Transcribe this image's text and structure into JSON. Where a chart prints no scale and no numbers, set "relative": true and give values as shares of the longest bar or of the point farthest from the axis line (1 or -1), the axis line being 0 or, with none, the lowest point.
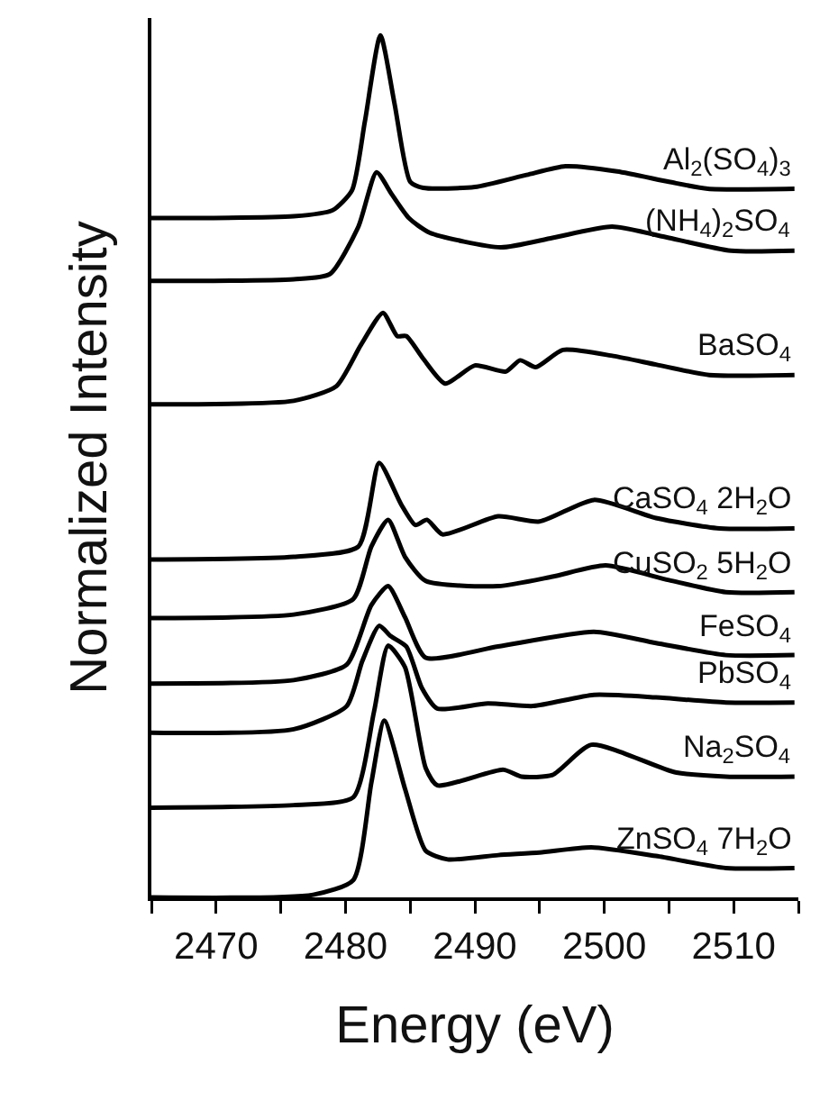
{
  "chart_data": {
    "type": "line",
    "xlabel": "Energy (eV)",
    "ylabel": "Normalized Intensity",
    "relative": true,
    "xlim": [
      2465,
      2515
    ],
    "xticks": [
      {
        "value": 2465,
        "label": null
      },
      2470,
      {
        "value": 2475,
        "label": null
      },
      2480,
      {
        "value": 2485,
        "label": null
      },
      2490,
      {
        "value": 2495,
        "label": null
      },
      2500,
      {
        "value": 2505,
        "label": null
      },
      2510,
      {
        "value": 2515,
        "label": null
      }
    ],
    "grid": false,
    "legend": false,
    "marker": "none",
    "line_style": "solid",
    "series": [
      {
        "name": "Al$_{2}$(SO$_{4}$)$_{3}$",
        "color": "#000000",
        "x": [
          2465,
          2476,
          2479,
          2480.5,
          2481.5,
          2482.7,
          2483.8,
          2485,
          2486,
          2490,
          2494,
          2497,
          2501,
          2505,
          2508,
          2514.7
        ],
        "values": [
          0.788,
          0.79,
          0.797,
          0.82,
          0.9,
          1.0,
          0.92,
          0.83,
          0.823,
          0.824,
          0.838,
          0.848,
          0.842,
          0.83,
          0.822,
          0.822
        ]
      },
      {
        "name": "(NH$_{4}$)$_{2}$SO$_{4}$",
        "color": "#000000",
        "x": [
          2465,
          2476,
          2478.8,
          2481,
          2482.4,
          2483.6,
          2484.9,
          2486.5,
          2492,
          2496,
          2500.6,
          2505,
          2509.8,
          2514.7
        ],
        "values": [
          0.715,
          0.717,
          0.723,
          0.778,
          0.841,
          0.815,
          0.788,
          0.771,
          0.754,
          0.765,
          0.778,
          0.765,
          0.75,
          0.75
        ]
      },
      {
        "name": "BaSO$_{4}$",
        "color": "#000000",
        "x": [
          2465,
          2476,
          2479.3,
          2481.2,
          2482.9,
          2484,
          2484.7,
          2486,
          2487.7,
          2490,
          2492.4,
          2493.5,
          2494.7,
          2496.8,
          2500.7,
          2504,
          2508.1,
          2514.7
        ],
        "values": [
          0.572,
          0.576,
          0.593,
          0.641,
          0.678,
          0.651,
          0.651,
          0.625,
          0.596,
          0.617,
          0.61,
          0.623,
          0.615,
          0.635,
          0.628,
          0.618,
          0.606,
          0.606
        ]
      },
      {
        "name": "CaSO$_{4}$ 2H$_{2}$O",
        "color": "#000000",
        "x": [
          2465,
          2476,
          2481,
          2482.6,
          2484.3,
          2485.4,
          2486.3,
          2487.5,
          2491.8,
          2495,
          2499.2,
          2504,
          2508.9,
          2514.7
        ],
        "values": [
          0.392,
          0.395,
          0.407,
          0.504,
          0.456,
          0.432,
          0.438,
          0.421,
          0.442,
          0.436,
          0.461,
          0.44,
          0.428,
          0.428
        ]
      },
      {
        "name": "CuSO$_{2}$ 5H$_{2}$O",
        "color": "#000000",
        "x": [
          2465,
          2476,
          2480.6,
          2482,
          2483.3,
          2484.6,
          2486.2,
          2491.8,
          2496,
          2500.1,
          2505,
          2509.4,
          2514.7
        ],
        "values": [
          0.324,
          0.328,
          0.346,
          0.407,
          0.438,
          0.395,
          0.367,
          0.361,
          0.372,
          0.385,
          0.368,
          0.354,
          0.354
        ]
      },
      {
        "name": "FeSO$_{4}$",
        "color": "#000000",
        "x": [
          2465,
          2476,
          2480.1,
          2482,
          2483.3,
          2484.6,
          2486.2,
          2491.8,
          2499.2,
          2504,
          2509.4,
          2514.7
        ],
        "values": [
          0.248,
          0.252,
          0.27,
          0.339,
          0.361,
          0.325,
          0.278,
          0.291,
          0.308,
          0.295,
          0.281,
          0.281
        ]
      },
      {
        "name": "PbSO$_{4}$",
        "color": "#000000",
        "x": [
          2465,
          2476,
          2480.1,
          2481.3,
          2482.6,
          2483.5,
          2484.7,
          2485.9,
          2487.1,
          2491,
          2494.5,
          2499.2,
          2504,
          2509.4,
          2514.7
        ],
        "values": [
          0.191,
          0.195,
          0.222,
          0.274,
          0.315,
          0.303,
          0.291,
          0.243,
          0.219,
          0.225,
          0.222,
          0.235,
          0.232,
          0.226,
          0.226
        ]
      },
      {
        "name": "Na$_{2}$SO$_{4}$",
        "color": "#000000",
        "x": [
          2465,
          2476,
          2480.6,
          2482.2,
          2483.3,
          2484.6,
          2486.2,
          2487.1,
          2492.2,
          2493.6,
          2496,
          2499,
          2505.5,
          2509.4,
          2514.7
        ],
        "values": [
          0.104,
          0.107,
          0.116,
          0.215,
          0.292,
          0.267,
          0.15,
          0.13,
          0.148,
          0.14,
          0.142,
          0.177,
          0.145,
          0.14,
          0.14
        ]
      },
      {
        "name": "ZnSO$_{4}$ 7H$_{2}$O",
        "color": "#000000",
        "x": [
          2465,
          2477.5,
          2480.6,
          2482,
          2483,
          2484.6,
          2486.2,
          2487.9,
          2491.8,
          2495,
          2499,
          2504,
          2509.4,
          2514.7
        ],
        "values": [
          0.0,
          0.003,
          0.02,
          0.133,
          0.205,
          0.126,
          0.054,
          0.044,
          0.049,
          0.052,
          0.058,
          0.048,
          0.034,
          0.034
        ]
      }
    ]
  }
}
